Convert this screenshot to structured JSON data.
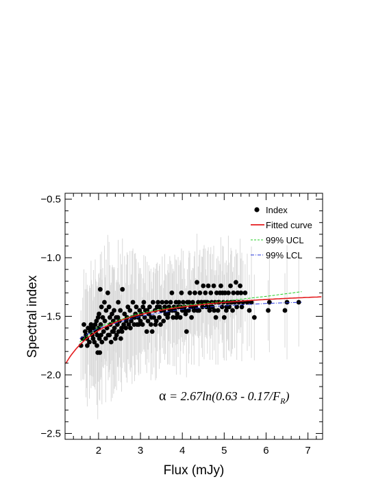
{
  "chart_data": {
    "type": "scatter",
    "xlabel": "Flux (mJy)",
    "ylabel": "Spectral index",
    "xlim": [
      1.2,
      7.35
    ],
    "ylim": [
      -2.55,
      -0.45
    ],
    "x_ticks": [
      2,
      3,
      4,
      5,
      6,
      7
    ],
    "x_tick_labels": [
      "2",
      "3",
      "4",
      "5",
      "6",
      "7"
    ],
    "y_ticks": [
      -0.5,
      -1.0,
      -1.5,
      -2.0,
      -2.5
    ],
    "y_tick_labels": [
      "−0.5",
      "−1.0",
      "−1.5",
      "−2.0",
      "−2.5"
    ],
    "legend_position": "top-right",
    "legend": [
      {
        "label": "Index",
        "style": "marker",
        "color": "#000000"
      },
      {
        "label": "Fitted curve",
        "style": "solid",
        "color": "#e41a1c"
      },
      {
        "label": "99% UCL",
        "style": "dashed",
        "color": "#22cc22"
      },
      {
        "label": "99% LCL",
        "style": "dashdot",
        "color": "#2233dd"
      }
    ],
    "annotation": {
      "symbol": "α",
      "text": " = 2.67ln(0.63 - 0.17/F",
      "subscript": "R",
      "close": ")"
    },
    "fitted_curve": {
      "A": 2.67,
      "B": 0.63,
      "C": 0.17,
      "x_range": [
        1.22,
        7.35
      ]
    },
    "ucl_curve": {
      "x": [
        1.55,
        2.0,
        3.0,
        4.0,
        5.0,
        6.0,
        6.85
      ],
      "y": [
        -1.72,
        -1.59,
        -1.47,
        -1.41,
        -1.37,
        -1.33,
        -1.29
      ]
    },
    "lcl_curve": {
      "x": [
        1.55,
        2.0,
        3.0,
        4.0,
        5.0,
        6.0,
        6.85
      ],
      "y": [
        -1.69,
        -1.6,
        -1.5,
        -1.44,
        -1.41,
        -1.39,
        -1.38
      ]
    },
    "series": [
      {
        "name": "Index",
        "points": [
          [
            1.58,
            -1.75
          ],
          [
            1.65,
            -1.57
          ],
          [
            1.68,
            -1.63
          ],
          [
            1.7,
            -1.66
          ],
          [
            1.72,
            -1.69
          ],
          [
            1.75,
            -1.6
          ],
          [
            1.78,
            -1.72
          ],
          [
            1.8,
            -1.63
          ],
          [
            1.82,
            -1.57
          ],
          [
            1.85,
            -1.66
          ],
          [
            1.87,
            -1.69
          ],
          [
            1.88,
            -1.6
          ],
          [
            1.9,
            -1.72
          ],
          [
            1.92,
            -1.57
          ],
          [
            1.93,
            -1.63
          ],
          [
            1.95,
            -1.54
          ],
          [
            1.96,
            -1.75
          ],
          [
            1.97,
            -1.66
          ],
          [
            1.98,
            -1.81
          ],
          [
            2.0,
            -1.6
          ],
          [
            2.01,
            -1.48
          ],
          [
            2.02,
            -1.69
          ],
          [
            2.03,
            -1.81
          ],
          [
            2.04,
            -1.27
          ],
          [
            2.05,
            -1.57
          ],
          [
            2.06,
            -1.66
          ],
          [
            2.08,
            -1.72
          ],
          [
            2.1,
            -1.51
          ],
          [
            2.12,
            -1.63
          ],
          [
            2.14,
            -1.38
          ],
          [
            2.15,
            -1.54
          ],
          [
            2.17,
            -1.69
          ],
          [
            2.18,
            -1.45
          ],
          [
            2.2,
            -1.6
          ],
          [
            2.22,
            -1.3
          ],
          [
            2.23,
            -1.66
          ],
          [
            2.25,
            -1.42
          ],
          [
            2.27,
            -1.51
          ],
          [
            2.28,
            -1.57
          ],
          [
            2.3,
            -1.72
          ],
          [
            2.32,
            -1.48
          ],
          [
            2.33,
            -1.63
          ],
          [
            2.35,
            -1.54
          ],
          [
            2.37,
            -1.45
          ],
          [
            2.38,
            -1.6
          ],
          [
            2.4,
            -1.69
          ],
          [
            2.42,
            -1.51
          ],
          [
            2.43,
            -1.66
          ],
          [
            2.45,
            -1.57
          ],
          [
            2.47,
            -1.38
          ],
          [
            2.48,
            -1.63
          ],
          [
            2.5,
            -1.54
          ],
          [
            2.52,
            -1.45
          ],
          [
            2.53,
            -1.69
          ],
          [
            2.55,
            -1.6
          ],
          [
            2.57,
            -1.27
          ],
          [
            2.6,
            -1.57
          ],
          [
            2.62,
            -1.48
          ],
          [
            2.65,
            -1.6
          ],
          [
            2.68,
            -1.51
          ],
          [
            2.7,
            -1.42
          ],
          [
            2.72,
            -1.57
          ],
          [
            2.75,
            -1.45
          ],
          [
            2.78,
            -1.54
          ],
          [
            2.8,
            -1.51
          ],
          [
            2.82,
            -1.38
          ],
          [
            2.85,
            -1.57
          ],
          [
            2.88,
            -1.48
          ],
          [
            2.9,
            -1.42
          ],
          [
            2.92,
            -1.57
          ],
          [
            2.95,
            -1.51
          ],
          [
            2.98,
            -1.45
          ],
          [
            3.0,
            -1.54
          ],
          [
            3.02,
            -1.48
          ],
          [
            3.05,
            -1.57
          ],
          [
            3.08,
            -1.38
          ],
          [
            3.1,
            -1.51
          ],
          [
            3.12,
            -1.45
          ],
          [
            3.15,
            -1.63
          ],
          [
            3.18,
            -1.54
          ],
          [
            3.2,
            -1.48
          ],
          [
            3.22,
            -1.42
          ],
          [
            3.25,
            -1.57
          ],
          [
            3.28,
            -1.63
          ],
          [
            3.3,
            -1.38
          ],
          [
            3.32,
            -1.51
          ],
          [
            3.35,
            -1.45
          ],
          [
            3.38,
            -1.54
          ],
          [
            3.4,
            -1.42
          ],
          [
            3.42,
            -1.38
          ],
          [
            3.45,
            -1.51
          ],
          [
            3.48,
            -1.57
          ],
          [
            3.5,
            -1.45
          ],
          [
            3.52,
            -1.38
          ],
          [
            3.55,
            -1.54
          ],
          [
            3.58,
            -1.42
          ],
          [
            3.6,
            -1.48
          ],
          [
            3.62,
            -1.38
          ],
          [
            3.65,
            -1.51
          ],
          [
            3.68,
            -1.42
          ],
          [
            3.7,
            -1.45
          ],
          [
            3.72,
            -1.38
          ],
          [
            3.75,
            -1.3
          ],
          [
            3.78,
            -1.51
          ],
          [
            3.8,
            -1.42
          ],
          [
            3.82,
            -1.45
          ],
          [
            3.85,
            -1.38
          ],
          [
            3.88,
            -1.48
          ],
          [
            3.9,
            -1.42
          ],
          [
            3.92,
            -1.38
          ],
          [
            3.95,
            -1.51
          ],
          [
            3.98,
            -1.3
          ],
          [
            4.0,
            -1.45
          ],
          [
            4.02,
            -1.38
          ],
          [
            4.05,
            -1.42
          ],
          [
            4.08,
            -1.48
          ],
          [
            4.1,
            -1.63
          ],
          [
            4.12,
            -1.38
          ],
          [
            4.15,
            -1.45
          ],
          [
            4.18,
            -1.3
          ],
          [
            4.2,
            -1.42
          ],
          [
            4.22,
            -1.51
          ],
          [
            4.25,
            -1.38
          ],
          [
            4.28,
            -1.45
          ],
          [
            4.3,
            -1.3
          ],
          [
            4.32,
            -1.42
          ],
          [
            4.35,
            -1.21
          ],
          [
            4.38,
            -1.38
          ],
          [
            4.4,
            -1.45
          ],
          [
            4.42,
            -1.3
          ],
          [
            4.45,
            -1.38
          ],
          [
            4.48,
            -1.42
          ],
          [
            4.5,
            -1.24
          ],
          [
            4.52,
            -1.38
          ],
          [
            4.55,
            -1.3
          ],
          [
            4.58,
            -1.42
          ],
          [
            4.6,
            -1.38
          ],
          [
            4.62,
            -1.24
          ],
          [
            4.65,
            -1.45
          ],
          [
            4.68,
            -1.3
          ],
          [
            4.7,
            -1.38
          ],
          [
            4.72,
            -1.42
          ],
          [
            4.75,
            -1.24
          ],
          [
            4.78,
            -1.38
          ],
          [
            4.8,
            -1.51
          ],
          [
            4.82,
            -1.3
          ],
          [
            4.85,
            -1.45
          ],
          [
            4.88,
            -1.38
          ],
          [
            4.9,
            -1.3
          ],
          [
            4.92,
            -1.24
          ],
          [
            4.95,
            -1.42
          ],
          [
            4.98,
            -1.38
          ],
          [
            5.0,
            -1.51
          ],
          [
            5.02,
            -1.3
          ],
          [
            5.05,
            -1.45
          ],
          [
            5.08,
            -1.38
          ],
          [
            5.1,
            -1.3
          ],
          [
            5.12,
            -1.42
          ],
          [
            5.15,
            -1.24
          ],
          [
            5.18,
            -1.38
          ],
          [
            5.2,
            -1.45
          ],
          [
            5.22,
            -1.3
          ],
          [
            5.25,
            -1.38
          ],
          [
            5.28,
            -1.21
          ],
          [
            5.3,
            -1.42
          ],
          [
            5.32,
            -1.3
          ],
          [
            5.35,
            -1.38
          ],
          [
            5.38,
            -1.24
          ],
          [
            5.4,
            -1.3
          ],
          [
            5.42,
            -1.42
          ],
          [
            5.45,
            -1.38
          ],
          [
            5.5,
            -1.3
          ],
          [
            5.55,
            -1.38
          ],
          [
            5.6,
            -1.45
          ],
          [
            5.65,
            -1.38
          ],
          [
            5.72,
            -1.51
          ],
          [
            6.05,
            -1.45
          ],
          [
            6.08,
            -1.38
          ],
          [
            6.45,
            -1.45
          ],
          [
            6.5,
            -1.38
          ],
          [
            6.78,
            -1.38
          ],
          [
            1.62,
            -1.69
          ],
          [
            1.73,
            -1.75
          ],
          [
            1.83,
            -1.6
          ],
          [
            1.99,
            -1.51
          ],
          [
            2.07,
            -1.42
          ],
          [
            2.26,
            -1.66
          ],
          [
            2.36,
            -1.63
          ],
          [
            2.46,
            -1.51
          ],
          [
            2.56,
            -1.63
          ],
          [
            2.66,
            -1.54
          ],
          [
            2.76,
            -1.6
          ],
          [
            2.86,
            -1.51
          ],
          [
            2.96,
            -1.57
          ],
          [
            3.06,
            -1.42
          ],
          [
            3.16,
            -1.45
          ],
          [
            3.26,
            -1.51
          ],
          [
            3.36,
            -1.57
          ],
          [
            3.46,
            -1.42
          ],
          [
            3.56,
            -1.45
          ],
          [
            3.66,
            -1.48
          ],
          [
            3.76,
            -1.45
          ],
          [
            3.86,
            -1.51
          ],
          [
            3.96,
            -1.42
          ],
          [
            4.06,
            -1.45
          ],
          [
            4.16,
            -1.38
          ],
          [
            4.26,
            -1.42
          ],
          [
            4.36,
            -1.45
          ],
          [
            4.46,
            -1.38
          ],
          [
            4.56,
            -1.38
          ],
          [
            4.66,
            -1.42
          ],
          [
            4.76,
            -1.45
          ],
          [
            4.86,
            -1.38
          ],
          [
            4.96,
            -1.3
          ],
          [
            5.06,
            -1.42
          ],
          [
            5.16,
            -1.38
          ]
        ]
      }
    ]
  }
}
